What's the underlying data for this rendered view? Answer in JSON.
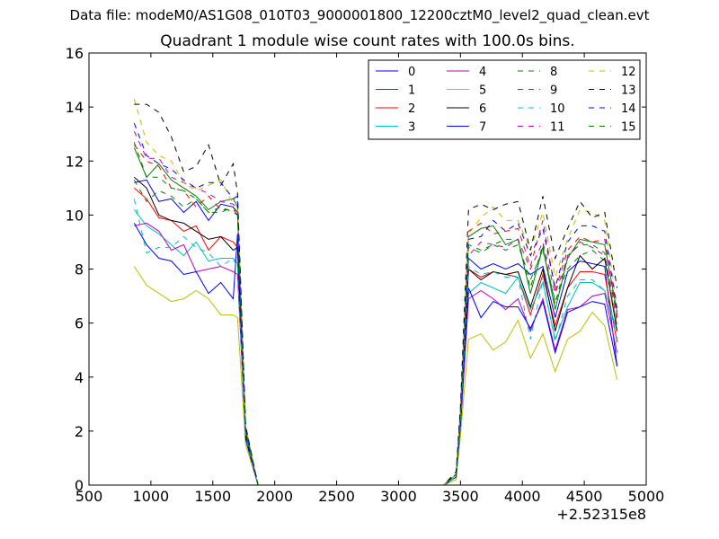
{
  "suptitle": "Data file: modeM0/AS1G08_010T03_9000001800_12200cztM0_level2_quad_clean.evt",
  "chart_data": {
    "type": "line",
    "title": "Quadrant 1 module wise count rates with 100.0s bins.",
    "xlabel": "",
    "ylabel": "",
    "x_offset_label": "+2.52315e8",
    "xlim": [
      500,
      5000
    ],
    "ylim": [
      0,
      16
    ],
    "xticks": [
      500,
      1000,
      1500,
      2000,
      2500,
      3000,
      3500,
      4000,
      4500,
      5000
    ],
    "xtick_labels": [
      "500",
      "1000",
      "1500",
      "2000",
      "2500",
      "3000",
      "3500",
      "4000",
      "4500",
      "5000"
    ],
    "yticks": [
      0,
      2,
      4,
      6,
      8,
      10,
      12,
      14,
      16
    ],
    "ytick_labels": [
      "0",
      "2",
      "4",
      "6",
      "8",
      "10",
      "12",
      "14",
      "16"
    ],
    "grid": false,
    "legend_placement": "top-right",
    "legend_columns": 4,
    "x": [
      865,
      965,
      1065,
      1165,
      1265,
      1365,
      1465,
      1565,
      1665,
      1700,
      1765,
      1865,
      1965,
      2065,
      2165,
      2265,
      2365,
      2465,
      2565,
      2665,
      2765,
      2865,
      2965,
      3065,
      3165,
      3265,
      3365,
      3465,
      3500,
      3565,
      3665,
      3765,
      3865,
      3965,
      4065,
      4165,
      4265,
      4365,
      4465,
      4565,
      4665,
      4765
    ],
    "series": [
      {
        "name": "0",
        "color": "#0000ff",
        "dash": "solid",
        "values": [
          11.2,
          11.3,
          10.5,
          10.6,
          10.1,
          10.5,
          9.8,
          10.4,
          10.3,
          10.1,
          2.0,
          0,
          0,
          0,
          0,
          0,
          0,
          0,
          0,
          0,
          0,
          0,
          0,
          0,
          0,
          0,
          0,
          0.4,
          2.5,
          8.4,
          8.0,
          8.2,
          8.0,
          8.2,
          7.8,
          8.1,
          6.2,
          7.9,
          8.3,
          8.2,
          8.1,
          4.4
        ]
      },
      {
        "name": "1",
        "color": "#008000",
        "dash": "solid",
        "values": [
          12.5,
          11.4,
          11.9,
          11.3,
          11.0,
          10.7,
          10.2,
          10.5,
          10.6,
          10.3,
          2.1,
          0,
          0,
          0,
          0,
          0,
          0,
          0,
          0,
          0,
          0,
          0,
          0,
          0,
          0,
          0,
          0,
          0.4,
          2.6,
          9.2,
          9.5,
          9.6,
          8.9,
          9.1,
          7.1,
          8.8,
          6.5,
          8.4,
          9.1,
          9.0,
          8.9,
          6.4
        ]
      },
      {
        "name": "2",
        "color": "#ff0000",
        "dash": "solid",
        "values": [
          11.0,
          10.6,
          9.9,
          9.8,
          9.4,
          9.6,
          8.7,
          9.2,
          9.0,
          8.8,
          1.9,
          0,
          0,
          0,
          0,
          0,
          0,
          0,
          0,
          0,
          0,
          0,
          0,
          0,
          0,
          0,
          0,
          0.3,
          2.3,
          8.0,
          7.7,
          7.9,
          7.8,
          7.7,
          6.3,
          7.8,
          5.9,
          7.3,
          7.9,
          7.9,
          7.8,
          5.3
        ]
      },
      {
        "name": "3",
        "color": "#00bfbf",
        "dash": "solid",
        "values": [
          10.2,
          9.6,
          9.3,
          8.9,
          8.5,
          9.0,
          8.3,
          8.4,
          8.4,
          8.2,
          1.8,
          0,
          0,
          0,
          0,
          0,
          0,
          0,
          0,
          0,
          0,
          0,
          0,
          0,
          0,
          0,
          0,
          0.3,
          2.2,
          7.1,
          7.5,
          7.3,
          7.1,
          7.7,
          6.5,
          7.5,
          5.4,
          6.6,
          7.5,
          7.5,
          7.2,
          5.7
        ]
      },
      {
        "name": "4",
        "color": "#bf00bf",
        "dash": "solid",
        "values": [
          9.6,
          9.7,
          9.4,
          8.7,
          8.9,
          7.9,
          8.0,
          8.1,
          7.9,
          7.8,
          1.7,
          0,
          0,
          0,
          0,
          0,
          0,
          0,
          0,
          0,
          0,
          0,
          0,
          0,
          0,
          0,
          0,
          0.3,
          2.1,
          6.9,
          7.2,
          6.9,
          6.5,
          6.9,
          5.7,
          6.9,
          5.0,
          6.5,
          6.6,
          7.0,
          7.1,
          4.9
        ]
      },
      {
        "name": "5",
        "color": "#bfbf00",
        "dash": "solid",
        "values": [
          8.1,
          7.4,
          7.1,
          6.8,
          6.9,
          7.2,
          6.9,
          6.3,
          6.3,
          6.2,
          1.5,
          0,
          0,
          0,
          0,
          0,
          0,
          0,
          0,
          0,
          0,
          0,
          0,
          0,
          0,
          0,
          0,
          0.2,
          1.8,
          5.4,
          5.6,
          5.0,
          5.3,
          6.1,
          4.7,
          5.6,
          4.2,
          5.4,
          5.7,
          6.4,
          5.9,
          3.9
        ]
      },
      {
        "name": "6",
        "color": "#000000",
        "dash": "solid",
        "values": [
          11.4,
          11.0,
          10.0,
          9.8,
          9.7,
          9.4,
          9.1,
          9.2,
          8.7,
          8.8,
          1.9,
          0,
          0,
          0,
          0,
          0,
          0,
          0,
          0,
          0,
          0,
          0,
          0,
          0,
          0,
          0,
          0,
          0.4,
          2.5,
          8.0,
          7.6,
          7.9,
          7.8,
          7.9,
          6.6,
          8.0,
          5.7,
          7.3,
          8.5,
          8.0,
          8.4,
          5.7
        ]
      },
      {
        "name": "7",
        "color": "#0000ff",
        "dash": "solid",
        "values": [
          9.7,
          8.9,
          8.4,
          8.3,
          7.8,
          7.9,
          7.1,
          7.5,
          6.9,
          9.3,
          1.7,
          0,
          0,
          0,
          0,
          0,
          0,
          0,
          0,
          0,
          0,
          0,
          0,
          0,
          0,
          0,
          0,
          0.3,
          2.2,
          7.3,
          6.2,
          6.8,
          6.6,
          6.6,
          5.8,
          6.8,
          4.9,
          6.4,
          6.6,
          6.8,
          6.7,
          4.4
        ]
      },
      {
        "name": "8",
        "color": "#008000",
        "dash": "dashed",
        "values": [
          11.3,
          10.5,
          10.9,
          10.7,
          10.3,
          10.6,
          10.1,
          10.1,
          10.3,
          10.0,
          2.0,
          0,
          0,
          0,
          0,
          0,
          0,
          0,
          0,
          0,
          0,
          0,
          0,
          0,
          0,
          0,
          0,
          0.4,
          2.5,
          8.9,
          8.7,
          8.9,
          9.1,
          9.1,
          7.3,
          8.9,
          6.7,
          8.5,
          8.9,
          8.9,
          8.6,
          6.0
        ]
      },
      {
        "name": "9",
        "color": "#ff0000",
        "dash": "dashed",
        "values": [
          12.6,
          12.0,
          11.8,
          11.0,
          10.9,
          10.3,
          10.7,
          10.2,
          10.2,
          10.0,
          2.1,
          0,
          0,
          0,
          0,
          0,
          0,
          0,
          0,
          0,
          0,
          0,
          0,
          0,
          0,
          0,
          0,
          0.4,
          2.7,
          9.4,
          9.7,
          9.3,
          9.4,
          9.5,
          8.1,
          9.8,
          7.2,
          8.7,
          9.2,
          9.0,
          9.1,
          6.2
        ]
      },
      {
        "name": "10",
        "color": "#00bfbf",
        "dash": "dashed",
        "values": [
          10.6,
          8.6,
          8.8,
          8.8,
          9.2,
          8.8,
          8.6,
          8.1,
          8.4,
          8.0,
          1.8,
          0,
          0,
          0,
          0,
          0,
          0,
          0,
          0,
          0,
          0,
          0,
          0,
          0,
          0,
          0,
          0,
          0.3,
          2.3,
          8.1,
          7.8,
          7.9,
          7.7,
          7.7,
          5.4,
          7.6,
          5.3,
          7.0,
          7.6,
          7.6,
          7.2,
          5.4
        ]
      },
      {
        "name": "11",
        "color": "#bf00bf",
        "dash": "dashed",
        "values": [
          13.1,
          12.1,
          12.1,
          11.4,
          11.2,
          11.0,
          10.8,
          10.5,
          10.4,
          10.2,
          2.1,
          0,
          0,
          0,
          0,
          0,
          0,
          0,
          0,
          0,
          0,
          0,
          0,
          0,
          0,
          0,
          0,
          0.4,
          2.6,
          8.5,
          9.0,
          8.9,
          8.8,
          9.1,
          8.0,
          9.0,
          7.1,
          8.4,
          9.0,
          8.8,
          8.5,
          6.3
        ]
      },
      {
        "name": "12",
        "color": "#bfbf00",
        "dash": "dashed",
        "values": [
          14.3,
          12.7,
          12.2,
          12.0,
          11.2,
          10.9,
          11.1,
          11.3,
          10.4,
          10.5,
          2.2,
          0,
          0,
          0,
          0,
          0,
          0,
          0,
          0,
          0,
          0,
          0,
          0,
          0,
          0,
          0,
          0,
          0.4,
          2.8,
          9.3,
          9.9,
          10.3,
          9.8,
          9.8,
          8.7,
          10.1,
          7.7,
          9.1,
          10.2,
          10.1,
          9.8,
          6.6
        ]
      },
      {
        "name": "13",
        "color": "#000000",
        "dash": "dashed",
        "values": [
          14.1,
          14.1,
          13.8,
          12.9,
          11.6,
          11.8,
          12.6,
          11.1,
          11.9,
          10.8,
          2.2,
          0,
          0,
          0,
          0,
          0,
          0,
          0,
          0,
          0,
          0,
          0,
          0,
          0,
          0,
          0,
          0,
          0.5,
          2.9,
          10.2,
          10.4,
          10.2,
          10.4,
          10.5,
          8.7,
          10.7,
          8.4,
          9.5,
          10.5,
          9.9,
          10.1,
          7.3
        ]
      },
      {
        "name": "14",
        "color": "#0000ff",
        "dash": "dashed",
        "values": [
          13.4,
          12.2,
          11.9,
          11.7,
          11.3,
          11.0,
          11.2,
          11.2,
          10.6,
          10.7,
          2.1,
          0,
          0,
          0,
          0,
          0,
          0,
          0,
          0,
          0,
          0,
          0,
          0,
          0,
          0,
          0,
          0,
          0.4,
          2.7,
          9.1,
          9.2,
          9.8,
          9.4,
          9.7,
          8.5,
          9.5,
          7.3,
          9.0,
          9.6,
          9.6,
          9.4,
          6.5
        ]
      },
      {
        "name": "15",
        "color": "#008000",
        "dash": "dashed",
        "values": [
          12.7,
          11.4,
          11.4,
          11.0,
          10.9,
          10.6,
          10.1,
          10.3,
          10.1,
          10.0,
          2.0,
          0,
          0,
          0,
          0,
          0,
          0,
          0,
          0,
          0,
          0,
          0,
          0,
          0,
          0,
          0,
          0,
          0.4,
          2.5,
          8.8,
          8.6,
          8.9,
          8.7,
          8.9,
          7.6,
          8.7,
          6.8,
          8.0,
          8.5,
          8.7,
          8.3,
          5.9
        ]
      }
    ]
  }
}
